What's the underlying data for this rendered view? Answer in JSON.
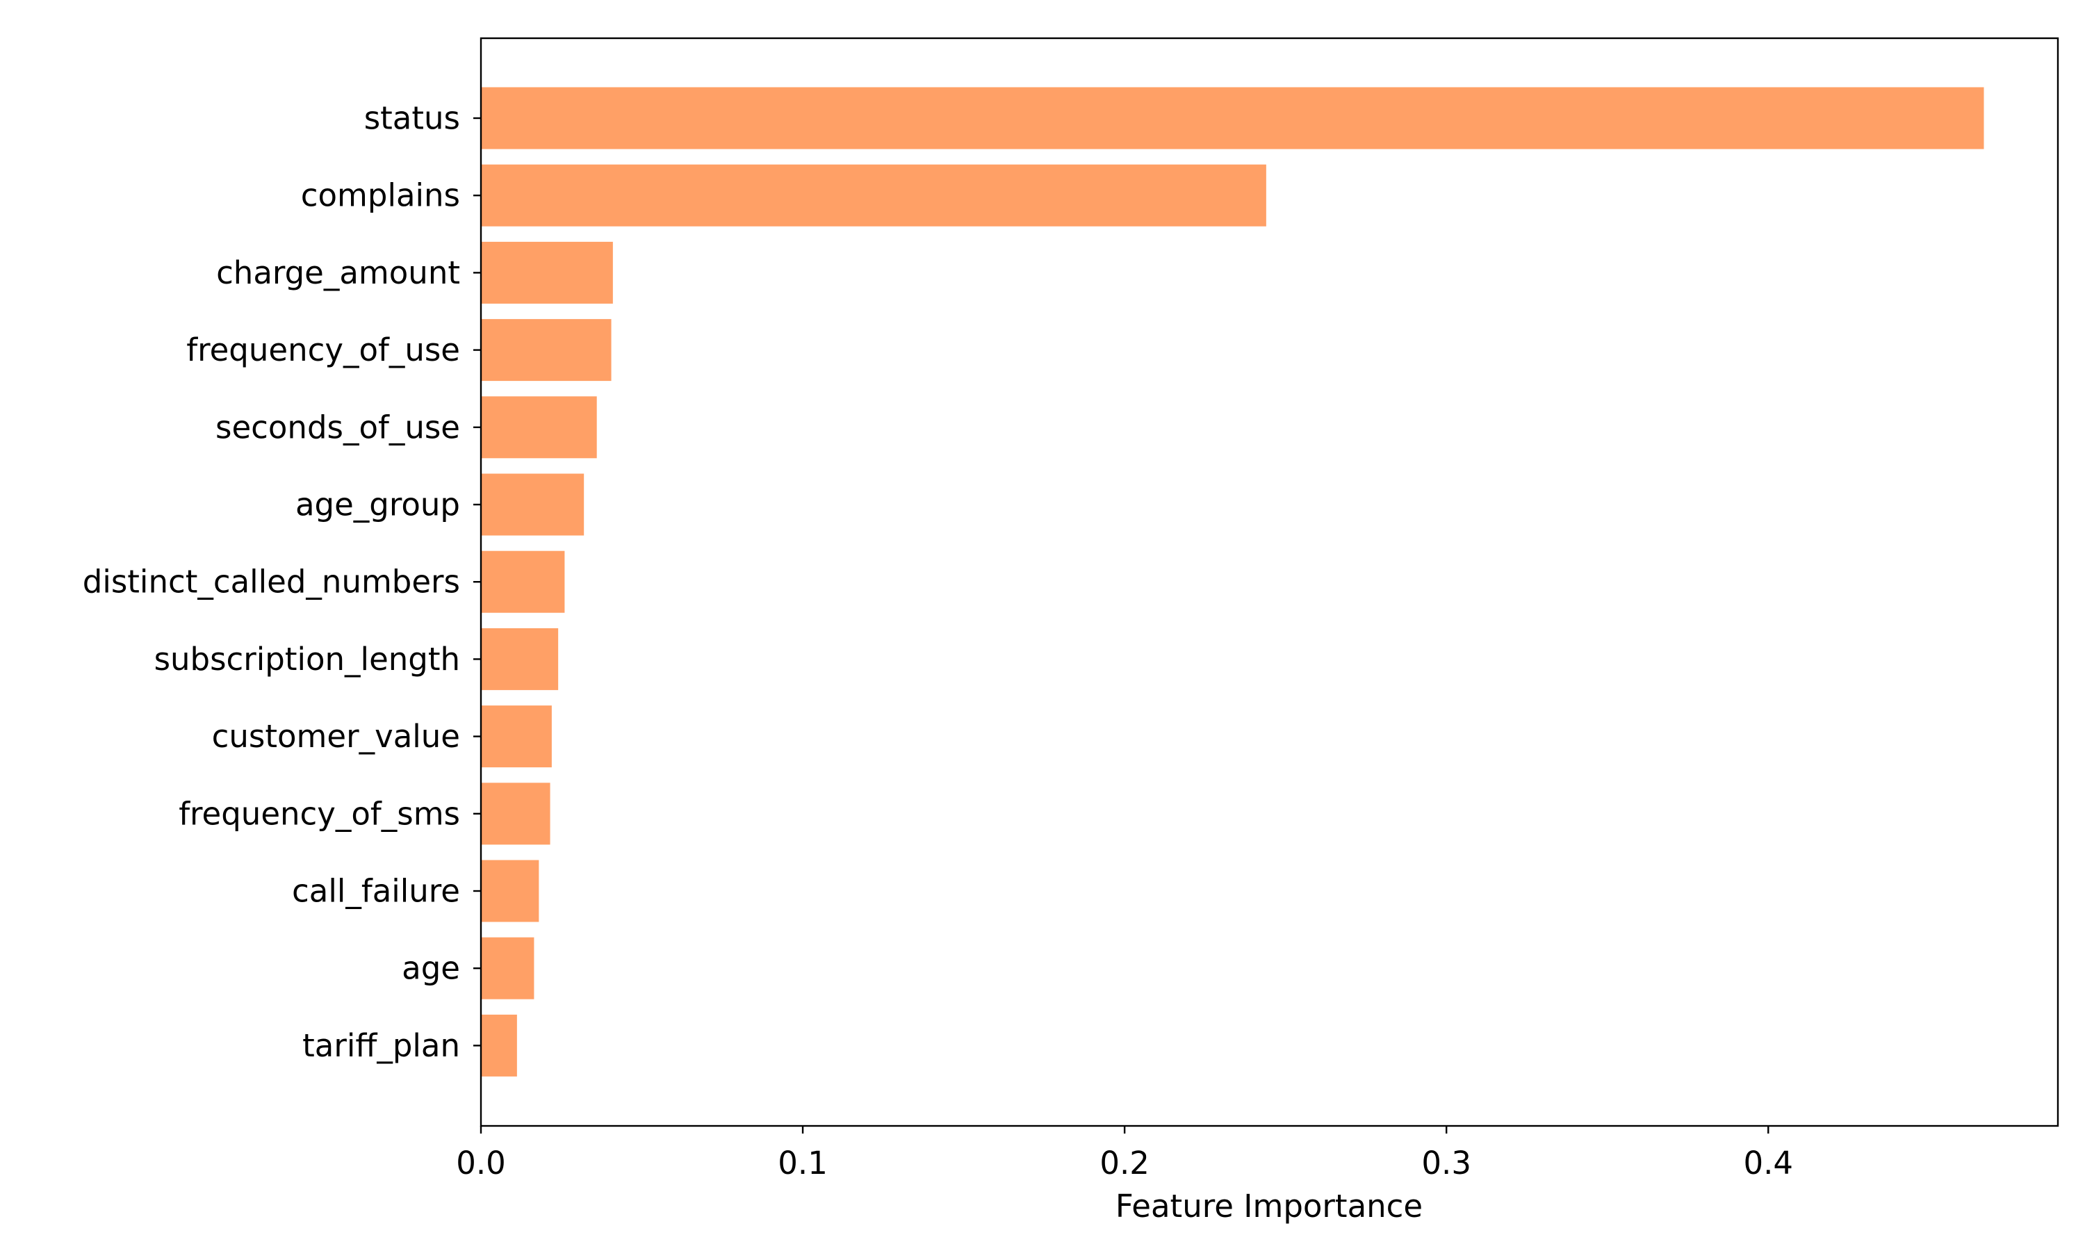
{
  "chart_data": {
    "type": "bar",
    "orientation": "horizontal",
    "categories": [
      "status",
      "complains",
      "charge_amount",
      "frequency_of_use",
      "seconds_of_use",
      "age_group",
      "distinct_called_numbers",
      "subscription_length",
      "customer_value",
      "frequency_of_sms",
      "call_failure",
      "age",
      "tariff_plan"
    ],
    "values": [
      0.467,
      0.244,
      0.041,
      0.0405,
      0.036,
      0.032,
      0.026,
      0.024,
      0.022,
      0.0215,
      0.018,
      0.0165,
      0.0112
    ],
    "xlabel": "Feature Importance",
    "ylabel": "",
    "xlim": [
      0,
      0.49
    ],
    "xticks": [
      0.0,
      0.1,
      0.2,
      0.3,
      0.4
    ],
    "xtick_labels": [
      "0.0",
      "0.1",
      "0.2",
      "0.3",
      "0.4"
    ],
    "grid": false,
    "legend": "none",
    "bar_color": "#ffa066"
  }
}
